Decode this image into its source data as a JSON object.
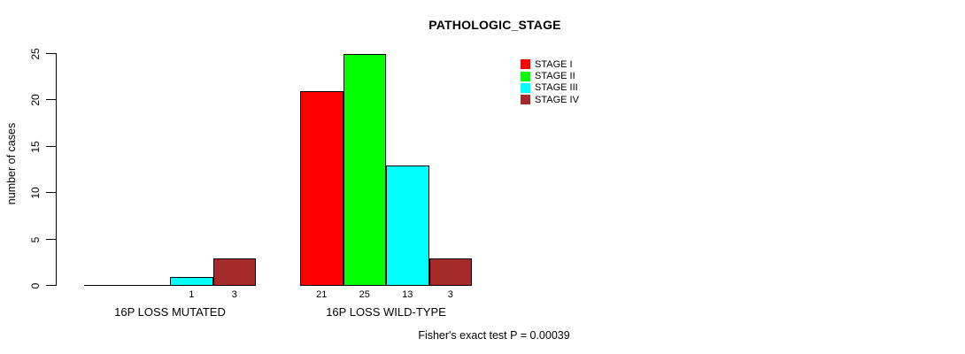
{
  "chart_data": {
    "type": "bar",
    "title": "PATHOLOGIC_STAGE",
    "ylabel": "number of cases",
    "ylim": [
      0,
      25
    ],
    "yticks": [
      0,
      5,
      10,
      15,
      20,
      25
    ],
    "grid": false,
    "legend_position": "top-right",
    "categories": [
      "16P LOSS MUTATED",
      "16P LOSS WILD-TYPE"
    ],
    "series": [
      {
        "name": "STAGE I",
        "color": "#ff0000",
        "values": [
          0,
          21
        ]
      },
      {
        "name": "STAGE II",
        "color": "#00ff00",
        "values": [
          0,
          25
        ]
      },
      {
        "name": "STAGE III",
        "color": "#00ffff",
        "values": [
          1,
          13
        ]
      },
      {
        "name": "STAGE IV",
        "color": "#a52a2a",
        "values": [
          3,
          3
        ]
      }
    ],
    "bar_value_labels": {
      "show": true,
      "hide_zero": true
    },
    "annotation": "Fisher's exact test P = 0.00039"
  }
}
